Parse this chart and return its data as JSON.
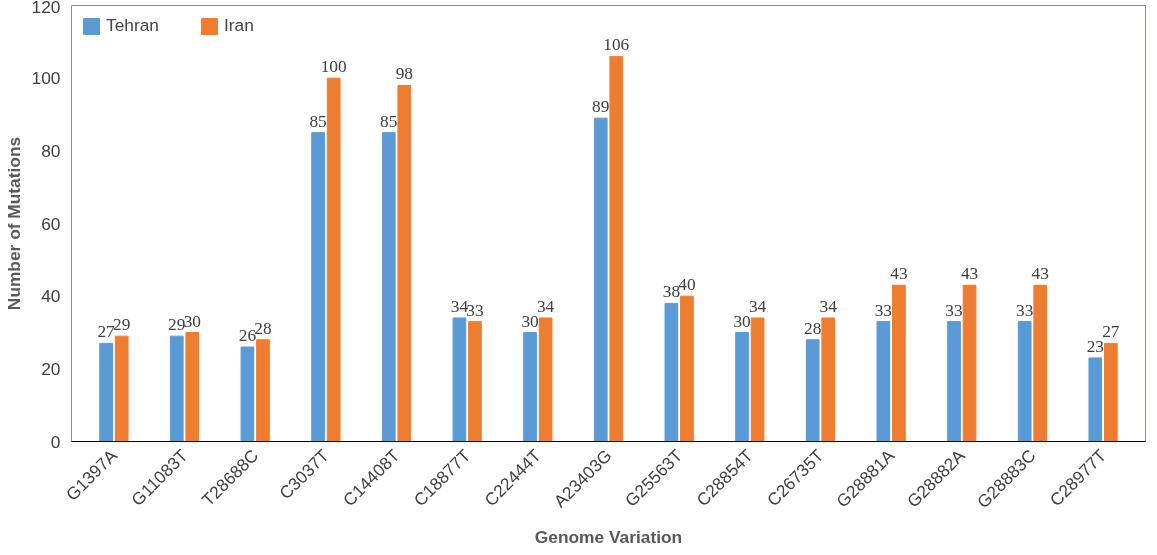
{
  "chart_data": {
    "type": "bar",
    "xlabel": "Genome Variation",
    "ylabel": "Number of Mutations",
    "categories": [
      "G1397A",
      "G11083T",
      "T28688C",
      "C3037T",
      "C14408T",
      "C18877T",
      "C22444T",
      "A23403G",
      "G25563T",
      "C28854T",
      "C26735T",
      "G28881A",
      "G28882A",
      "G28883C",
      "C28977T"
    ],
    "series": [
      {
        "name": "Tehran",
        "color": "#5b9bd5",
        "values": [
          27,
          29,
          26,
          85,
          85,
          34,
          30,
          89,
          38,
          30,
          28,
          33,
          33,
          33,
          23
        ]
      },
      {
        "name": "Iran",
        "color": "#ed7d31",
        "values": [
          29,
          30,
          28,
          100,
          98,
          33,
          34,
          106,
          40,
          34,
          34,
          43,
          43,
          43,
          27
        ]
      }
    ],
    "ylim": [
      0,
      120
    ],
    "yticks": [
      0,
      20,
      40,
      60,
      80,
      100,
      120
    ],
    "grid": false,
    "legend": "top left",
    "data_labels": true
  }
}
